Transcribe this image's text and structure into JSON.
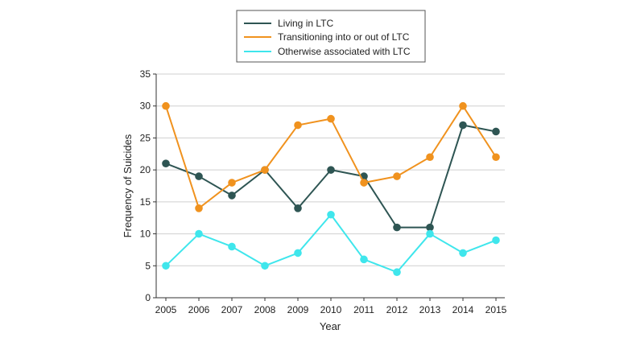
{
  "chart_data": {
    "type": "line",
    "title": "",
    "xlabel": "Year",
    "ylabel": "Frequency of Suicides",
    "x": [
      2005,
      2006,
      2007,
      2008,
      2009,
      2010,
      2011,
      2012,
      2013,
      2014,
      2015
    ],
    "x_tick_labels": [
      "2005",
      "2006",
      "2007",
      "2008",
      "2009",
      "2010",
      "2011",
      "2012",
      "2013",
      "2014",
      "2015"
    ],
    "ylim": [
      0,
      35
    ],
    "y_ticks": [
      0,
      5,
      10,
      15,
      20,
      25,
      30,
      35
    ],
    "y_tick_labels": [
      "0",
      "5",
      "10",
      "15",
      "20",
      "25",
      "30",
      "35"
    ],
    "grid": "horizontal",
    "legend_position": "top-center",
    "series": [
      {
        "name": "Living in LTC",
        "color": "#2e5553",
        "values": [
          21,
          19,
          16,
          20,
          14,
          20,
          19,
          11,
          11,
          27,
          26
        ]
      },
      {
        "name": "Transitioning into or out of LTC",
        "color": "#f0921e",
        "values": [
          30,
          14,
          18,
          20,
          27,
          28,
          18,
          19,
          22,
          30,
          22
        ]
      },
      {
        "name": "Otherwise associated with LTC",
        "color": "#3fe6ec",
        "values": [
          5,
          10,
          8,
          5,
          7,
          13,
          6,
          4,
          10,
          7,
          9
        ]
      }
    ]
  }
}
